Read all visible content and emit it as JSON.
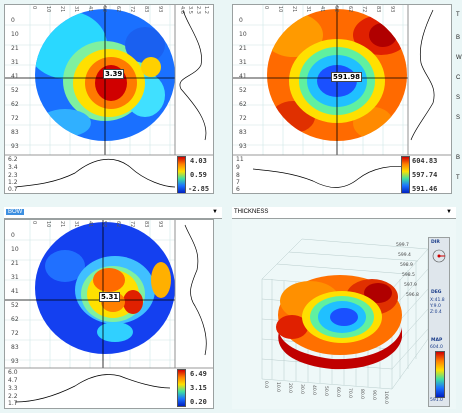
{
  "top_left": {
    "cursor_value": "3.39",
    "colorbar": {
      "max": "4.03",
      "mid": "0.59",
      "min": "-2.85"
    },
    "y_ticks": [
      "0",
      "10",
      "21",
      "31",
      "41",
      "52",
      "62",
      "72",
      "83",
      "93"
    ],
    "x_ticks": [
      "0",
      "10",
      "21",
      "31",
      "41",
      "52",
      "62",
      "72",
      "83",
      "93"
    ],
    "side_ticks": [
      "4.6",
      "3.5",
      "2.3",
      "1.2"
    ],
    "profile_ticks": [
      "6.2",
      "3.4",
      "2.3",
      "1.2",
      "0.7"
    ]
  },
  "top_right": {
    "cursor_value": "591.98",
    "colorbar": {
      "max": "604.83",
      "mid": "597.74",
      "min": "591.46"
    },
    "y_ticks": [
      "0",
      "10",
      "21",
      "31",
      "41",
      "52",
      "62",
      "72",
      "83",
      "93"
    ],
    "x_ticks": [
      "0",
      "10",
      "21",
      "31",
      "41",
      "52",
      "62",
      "72",
      "83",
      "93"
    ],
    "profile_ticks": [
      "11",
      "9",
      "8",
      "7",
      "6"
    ]
  },
  "bottom_left": {
    "dropdown": "BOW",
    "cursor_value": "5.31",
    "colorbar": {
      "max": "6.49",
      "mid": "3.15",
      "min": "0.20"
    },
    "y_ticks": [
      "0",
      "10",
      "21",
      "31",
      "41",
      "52",
      "62",
      "72",
      "83",
      "93"
    ],
    "x_ticks": [
      "0",
      "10",
      "21",
      "31",
      "41",
      "52",
      "62",
      "72",
      "83",
      "93"
    ],
    "profile_ticks": [
      "6.0",
      "4.7",
      "3.3",
      "2.2",
      "1.7"
    ]
  },
  "bottom_right": {
    "dropdown": "THICKNESS",
    "legend": {
      "dir_label": "DIR",
      "deg_label": "DEG",
      "coords": [
        "X:41.8",
        "Y:9.0",
        "Z:0.4"
      ],
      "map_label": "MAP",
      "map_max": "604.0",
      "map_min": "591.0"
    },
    "z_ticks": [
      "599.7",
      "599.4",
      "598.9",
      "598.5",
      "597.9",
      "596.8"
    ],
    "x_ticks": [
      "0.0",
      "10.0",
      "20.0",
      "30.0",
      "40.0",
      "50.0",
      "60.0",
      "70.0",
      "80.0",
      "90.0",
      "100.0"
    ]
  },
  "right_edge_labels": [
    "T",
    "B",
    "W",
    "C",
    "S",
    "S",
    "B",
    "T"
  ],
  "colors": {
    "background": "#eaf6f6",
    "dropdown_highlight": "#3d8fe0"
  }
}
